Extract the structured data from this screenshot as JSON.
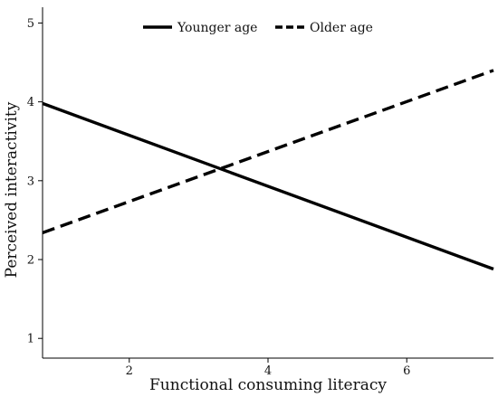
{
  "chart_data": {
    "type": "line",
    "title": "",
    "xlabel": "Functional consuming literacy",
    "ylabel": "Perceived interactivity",
    "xlim": [
      0.75,
      7.25
    ],
    "ylim": [
      0.75,
      5.2
    ],
    "xticks": [
      2,
      4,
      6
    ],
    "yticks": [
      1,
      2,
      3,
      4,
      5
    ],
    "grid": false,
    "legend_position": "top-center",
    "series": [
      {
        "name": "Younger age",
        "style": "solid",
        "color": "#000000",
        "x": [
          0.75,
          7.25
        ],
        "y": [
          3.98,
          1.88
        ]
      },
      {
        "name": "Older age",
        "style": "dashed",
        "color": "#000000",
        "x": [
          0.75,
          7.25
        ],
        "y": [
          2.34,
          4.4
        ]
      }
    ]
  }
}
